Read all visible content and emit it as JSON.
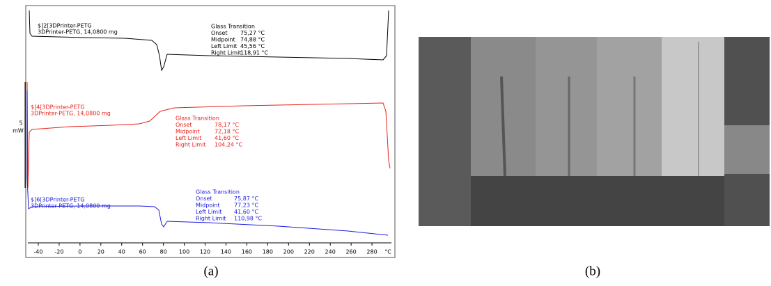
{
  "panel_a": {
    "curves": [
      {
        "color": "#000000",
        "sample": [
          "$]2[3DPrinter-PETG",
          "3DPrinter-PETG, 14,0800 mg"
        ],
        "annotation_title": "Glass Transition",
        "rows": [
          [
            "Onset",
            "75,27 °C"
          ],
          [
            "Midpoint",
            "74,88 °C"
          ],
          [
            "Left Limit",
            "45,56 °C"
          ],
          [
            "Right Limit",
            "118,91 °C"
          ]
        ]
      },
      {
        "color": "#e8201a",
        "sample": [
          "$]4[3DPrinter-PETG",
          "3DPrinter-PETG, 14,0800 mg"
        ],
        "annotation_title": "Glass Transition",
        "rows": [
          [
            "Onset",
            "78,17 °C"
          ],
          [
            "Midpoint",
            "72,18 °C"
          ],
          [
            "Left Limit",
            "41,60 °C"
          ],
          [
            "Right Limit",
            "104,24 °C"
          ]
        ]
      },
      {
        "color": "#1a1ae0",
        "sample": [
          "$]6[3DPrinter-PETG",
          "3DPrinter-PETG, 14,0800 mg"
        ],
        "annotation_title": "Glass Transition",
        "rows": [
          [
            "Onset",
            "75,87 °C"
          ],
          [
            "Midpoint",
            "77,23 °C"
          ],
          [
            "Left Limit",
            "41,60 °C"
          ],
          [
            "Right Limit",
            "110,98 °C"
          ]
        ]
      }
    ],
    "scale_bar": [
      "5",
      "mW"
    ],
    "x_axis": {
      "xlim": [
        -50,
        300
      ],
      "xticks": [
        -40,
        -20,
        0,
        20,
        40,
        60,
        80,
        100,
        120,
        140,
        160,
        180,
        200,
        220,
        240,
        260,
        280
      ],
      "unit": "°C"
    }
  },
  "captions": [
    "(a)",
    "(b)"
  ]
}
